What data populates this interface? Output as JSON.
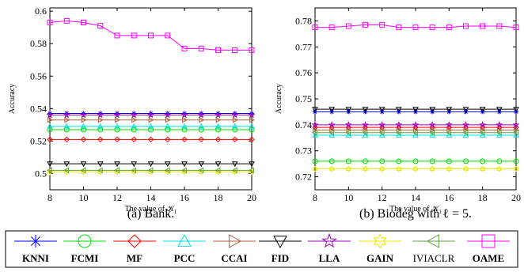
{
  "chart_data": [
    {
      "type": "line",
      "caption": "(a)  Bank.",
      "xlabel": "The value of 𝒦",
      "xlabel_sub": "1",
      "ylabel": "Accuracy",
      "x": [
        8,
        9,
        10,
        11,
        12,
        13,
        14,
        15,
        16,
        17,
        18,
        19,
        20
      ],
      "xlim": [
        8,
        20
      ],
      "ylim": [
        0.49,
        0.602
      ],
      "xticks": [
        8,
        10,
        12,
        14,
        16,
        18,
        20
      ],
      "yticks": [
        0.5,
        0.52,
        0.54,
        0.56,
        0.58,
        0.6
      ],
      "ytick_labels": [
        "0.5",
        "0.52",
        "0.54",
        "0.56",
        "0.58",
        "0.6"
      ],
      "series": [
        {
          "key": "KNNI",
          "values": [
            0.537,
            0.537,
            0.537,
            0.537,
            0.537,
            0.537,
            0.537,
            0.537,
            0.537,
            0.537,
            0.537,
            0.537,
            0.537
          ]
        },
        {
          "key": "FCMI",
          "values": [
            0.527,
            0.527,
            0.527,
            0.527,
            0.527,
            0.527,
            0.527,
            0.527,
            0.527,
            0.527,
            0.527,
            0.527,
            0.527
          ]
        },
        {
          "key": "MF",
          "values": [
            0.521,
            0.521,
            0.521,
            0.521,
            0.521,
            0.521,
            0.521,
            0.521,
            0.521,
            0.521,
            0.521,
            0.521,
            0.521
          ]
        },
        {
          "key": "PCC",
          "values": [
            0.529,
            0.529,
            0.529,
            0.529,
            0.529,
            0.529,
            0.529,
            0.529,
            0.529,
            0.529,
            0.529,
            0.529,
            0.529
          ]
        },
        {
          "key": "CCAI",
          "values": [
            0.533,
            0.533,
            0.533,
            0.533,
            0.533,
            0.533,
            0.533,
            0.533,
            0.533,
            0.533,
            0.533,
            0.533,
            0.533
          ]
        },
        {
          "key": "FID",
          "values": [
            0.506,
            0.506,
            0.506,
            0.506,
            0.506,
            0.506,
            0.506,
            0.506,
            0.506,
            0.506,
            0.506,
            0.506,
            0.506
          ]
        },
        {
          "key": "LLA",
          "values": [
            0.536,
            0.536,
            0.536,
            0.536,
            0.536,
            0.536,
            0.536,
            0.536,
            0.536,
            0.536,
            0.536,
            0.536,
            0.536
          ]
        },
        {
          "key": "GAIN",
          "values": [
            0.501,
            0.501,
            0.501,
            0.501,
            0.501,
            0.501,
            0.501,
            0.501,
            0.501,
            0.501,
            0.501,
            0.501,
            0.501
          ]
        },
        {
          "key": "IVIACLR",
          "values": [
            0.502,
            0.502,
            0.502,
            0.502,
            0.502,
            0.502,
            0.502,
            0.502,
            0.502,
            0.502,
            0.502,
            0.502,
            0.502
          ]
        },
        {
          "key": "OAME",
          "values": [
            0.593,
            0.594,
            0.593,
            0.591,
            0.585,
            0.585,
            0.585,
            0.585,
            0.577,
            0.577,
            0.576,
            0.576,
            0.576
          ]
        }
      ]
    },
    {
      "type": "line",
      "caption": "(b)  Biodeg with ℓ = 5.",
      "xlabel": "The value of 𝒦",
      "xlabel_sub": "1",
      "ylabel": "Accuracy",
      "x": [
        8,
        9,
        10,
        11,
        12,
        13,
        14,
        15,
        16,
        17,
        18,
        19,
        20
      ],
      "xlim": [
        8,
        20
      ],
      "ylim": [
        0.715,
        0.785
      ],
      "xticks": [
        8,
        10,
        12,
        14,
        16,
        18,
        20
      ],
      "yticks": [
        0.72,
        0.73,
        0.74,
        0.75,
        0.76,
        0.77,
        0.78
      ],
      "ytick_labels": [
        "0.72",
        "0.73",
        "0.74",
        "0.75",
        "0.76",
        "0.77",
        "0.78"
      ],
      "series": [
        {
          "key": "KNNI",
          "values": [
            0.745,
            0.745,
            0.745,
            0.745,
            0.745,
            0.745,
            0.745,
            0.745,
            0.745,
            0.745,
            0.745,
            0.745,
            0.745
          ]
        },
        {
          "key": "FCMI",
          "values": [
            0.726,
            0.726,
            0.726,
            0.726,
            0.726,
            0.726,
            0.726,
            0.726,
            0.726,
            0.726,
            0.726,
            0.726,
            0.726
          ]
        },
        {
          "key": "MF",
          "values": [
            0.739,
            0.739,
            0.739,
            0.739,
            0.739,
            0.739,
            0.739,
            0.739,
            0.739,
            0.739,
            0.739,
            0.739,
            0.739
          ]
        },
        {
          "key": "PCC",
          "values": [
            0.736,
            0.736,
            0.736,
            0.736,
            0.736,
            0.736,
            0.736,
            0.736,
            0.736,
            0.736,
            0.736,
            0.736,
            0.736
          ]
        },
        {
          "key": "CCAI",
          "values": [
            0.738,
            0.738,
            0.738,
            0.738,
            0.738,
            0.738,
            0.738,
            0.738,
            0.738,
            0.738,
            0.738,
            0.738,
            0.738
          ]
        },
        {
          "key": "FID",
          "values": [
            0.746,
            0.746,
            0.746,
            0.746,
            0.746,
            0.746,
            0.746,
            0.746,
            0.746,
            0.746,
            0.746,
            0.746,
            0.746
          ]
        },
        {
          "key": "LLA",
          "values": [
            0.74,
            0.74,
            0.74,
            0.74,
            0.74,
            0.74,
            0.74,
            0.74,
            0.74,
            0.74,
            0.74,
            0.74,
            0.74
          ]
        },
        {
          "key": "GAIN",
          "values": [
            0.723,
            0.723,
            0.723,
            0.723,
            0.723,
            0.723,
            0.723,
            0.723,
            0.723,
            0.723,
            0.723,
            0.723,
            0.723
          ]
        },
        {
          "key": "IVIACLR",
          "values": [
            0.737,
            0.737,
            0.737,
            0.737,
            0.737,
            0.737,
            0.737,
            0.737,
            0.737,
            0.737,
            0.737,
            0.737,
            0.737
          ]
        },
        {
          "key": "OAME",
          "values": [
            0.7775,
            0.7775,
            0.778,
            0.7785,
            0.7785,
            0.7775,
            0.7775,
            0.7775,
            0.7775,
            0.778,
            0.778,
            0.778,
            0.7775
          ]
        }
      ]
    }
  ],
  "legend": [
    {
      "key": "KNNI",
      "label": "KNNI",
      "color": "#0000ff",
      "marker": "asterisk"
    },
    {
      "key": "FCMI",
      "label": "FCMI",
      "color": "#00e000",
      "marker": "circle"
    },
    {
      "key": "MF",
      "label": "MF",
      "color": "#ff0000",
      "marker": "diamond"
    },
    {
      "key": "PCC",
      "label": "PCC",
      "color": "#00e0e0",
      "marker": "triangle-up"
    },
    {
      "key": "CCAI",
      "label": "CCAI",
      "color": "#b0603a",
      "marker": "triangle-right"
    },
    {
      "key": "FID",
      "label": "FID",
      "color": "#000000",
      "marker": "triangle-down"
    },
    {
      "key": "LLA",
      "label": "LLA",
      "color": "#a000c0",
      "marker": "pentagram"
    },
    {
      "key": "GAIN",
      "label": "GAIN",
      "color": "#e8e800",
      "marker": "hexagram"
    },
    {
      "key": "IVIACLR",
      "label": "IVIACLR",
      "color": "#60a040",
      "marker": "triangle-left"
    },
    {
      "key": "OAME",
      "label": "OAME",
      "color": "#ff00ff",
      "marker": "square"
    }
  ]
}
